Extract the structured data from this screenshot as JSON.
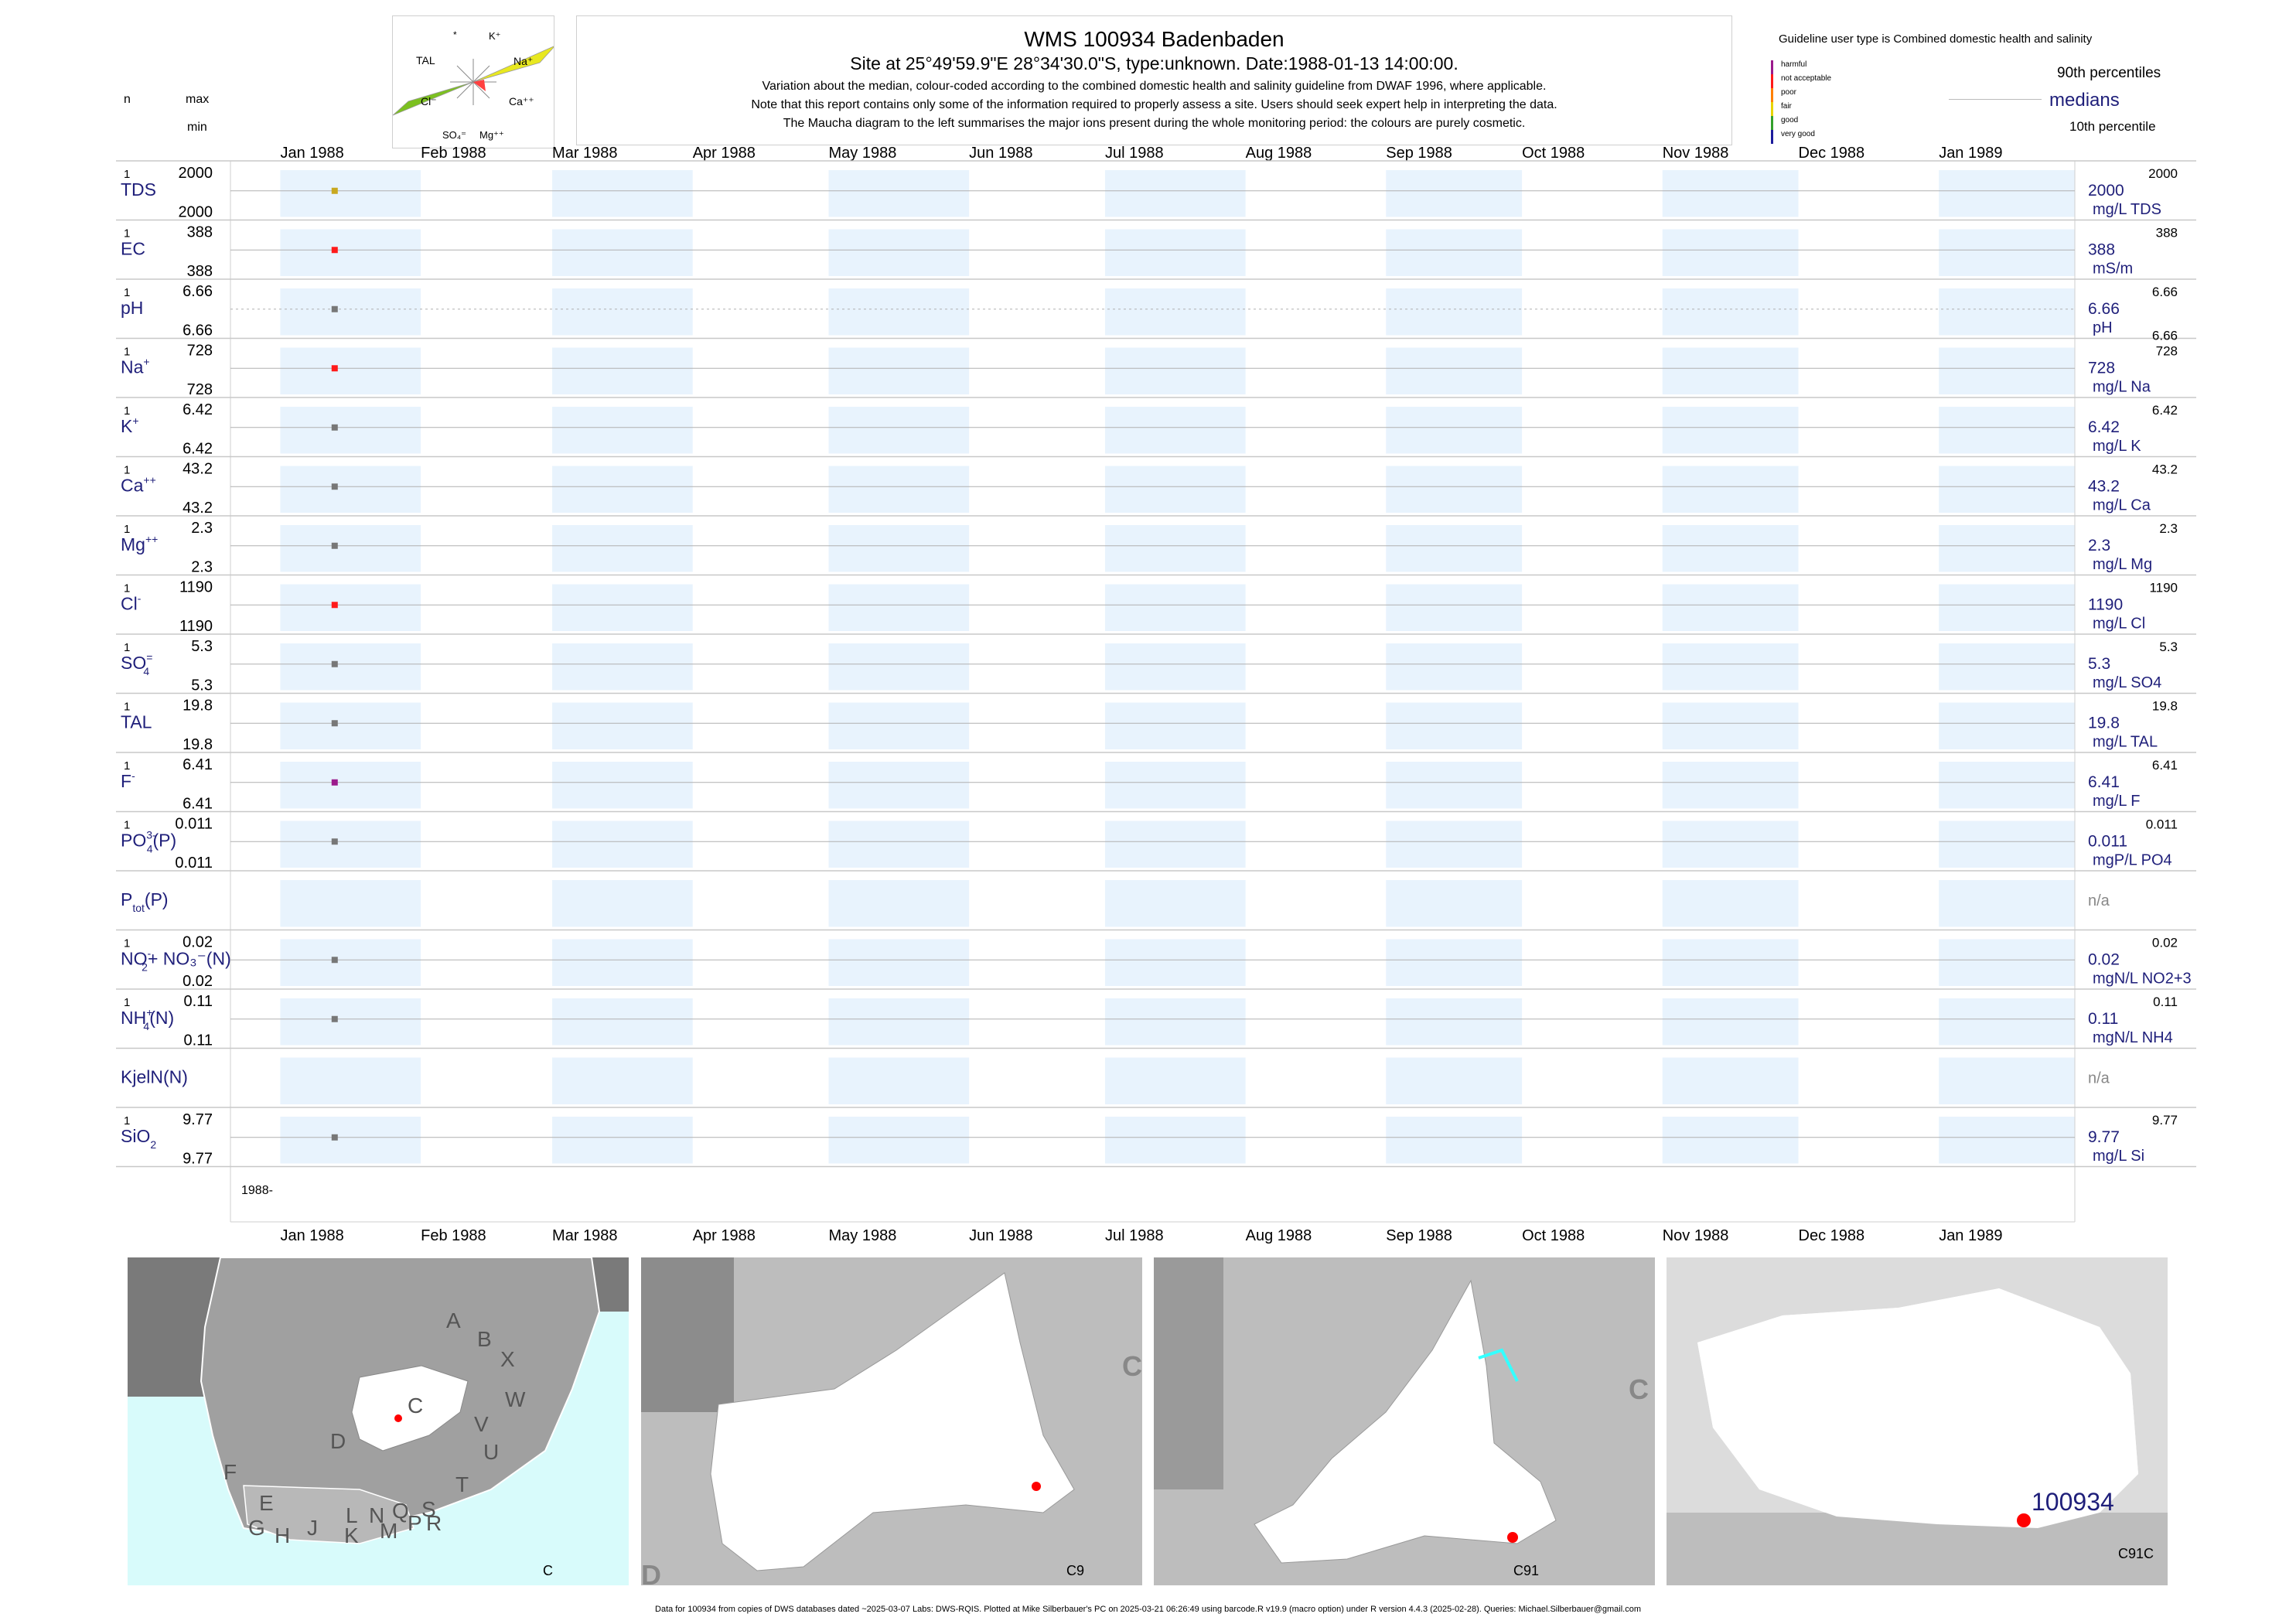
{
  "header": {
    "title": "WMS 100934  Badenbaden",
    "subtitle": "Site at 25°49'59.9\"E 28°34'30.0\"S, type:unknown. Date:1988-01-13 14:00:00.",
    "note1": "Variation about the median,  colour-coded according to the combined domestic health and salinity guideline from DWAF 1996, where applicable.",
    "note2": "Note that this report contains only some of the information required to properly assess a site. Users should seek expert help in interpreting the data.",
    "note3": "The Maucha diagram to the left summarises the major ions present during the whole monitoring period: the colours are purely cosmetic."
  },
  "maucha": {
    "labels": {
      "star": "*",
      "k": "K⁺",
      "tal": "TAL",
      "na": "Na⁺",
      "cl": "Cl⁻",
      "ca": "Ca⁺⁺",
      "so4": "SO₄⁼",
      "mg": "Mg⁺⁺"
    },
    "colors": {
      "na": "#e8e820",
      "cl": "#7cc020",
      "ca": "#ff4040",
      "lines": "#888888"
    }
  },
  "legend": {
    "guideline_title": "Guideline user type is Combined domestic health and salinity",
    "categories": [
      {
        "label": "harmful",
        "color": "#9b1a8c"
      },
      {
        "label": "not acceptable",
        "color": "#ff1a1a"
      },
      {
        "label": "poor",
        "color": "#ff8000"
      },
      {
        "label": "fair",
        "color": "#e8d400"
      },
      {
        "label": "good",
        "color": "#33a02c"
      },
      {
        "label": "very good",
        "color": "#1c1c9c"
      }
    ],
    "p90": "90th percentiles",
    "medians": "medians",
    "p10": "10th percentile"
  },
  "left_header": {
    "n": "n",
    "max": "max",
    "min": "min"
  },
  "chart_data": {
    "type": "scatter",
    "x_axis": {
      "months": [
        "Jan 1988",
        "Feb 1988",
        "Mar 1988",
        "Apr 1988",
        "May 1988",
        "Jun 1988",
        "Jul 1988",
        "Aug 1988",
        "Sep 1988",
        "Oct 1988",
        "Nov 1988",
        "Dec 1988",
        "Jan 1989"
      ],
      "year_label": "1988-",
      "range": [
        "1987-12-21",
        "1989-01-31"
      ]
    },
    "sample_date": "1988-01-13",
    "rows": [
      {
        "label": "TDS",
        "sup": "",
        "sub": "",
        "n": "1",
        "max": "2000",
        "min": "2000",
        "median": "2000",
        "p90": "2000",
        "unit": "mg/L TDS",
        "value": 2000,
        "color": "#c8a820"
      },
      {
        "label": "EC",
        "sup": "",
        "sub": "",
        "n": "1",
        "max": "388",
        "min": "388",
        "median": "388",
        "p90": "388",
        "unit": "mS/m",
        "value": 388,
        "color": "#ff1a1a"
      },
      {
        "label": "pH",
        "sup": "",
        "sub": "",
        "n": "1",
        "max": "6.66",
        "min": "6.66",
        "median": "6.66",
        "p90": "6.66",
        "p10": "6.66",
        "unit": "pH",
        "value": 6.66,
        "color": "#777777"
      },
      {
        "label": "Na",
        "sup": "+",
        "sub": "",
        "n": "1",
        "max": "728",
        "min": "728",
        "median": "728",
        "p90": "728",
        "unit": "mg/L Na",
        "value": 728,
        "color": "#ff1a1a"
      },
      {
        "label": "K",
        "sup": "+",
        "sub": "",
        "n": "1",
        "max": "6.42",
        "min": "6.42",
        "median": "6.42",
        "p90": "6.42",
        "unit": "mg/L K",
        "value": 6.42,
        "color": "#777777"
      },
      {
        "label": "Ca",
        "sup": "++",
        "sub": "",
        "n": "1",
        "max": "43.2",
        "min": "43.2",
        "median": "43.2",
        "p90": "43.2",
        "unit": "mg/L Ca",
        "value": 43.2,
        "color": "#777777"
      },
      {
        "label": "Mg",
        "sup": "++",
        "sub": "",
        "n": "1",
        "max": "2.3",
        "min": "2.3",
        "median": "2.3",
        "p90": "2.3",
        "unit": "mg/L Mg",
        "value": 2.3,
        "color": "#777777"
      },
      {
        "label": "Cl",
        "sup": "-",
        "sub": "",
        "n": "1",
        "max": "1190",
        "min": "1190",
        "median": "1190",
        "p90": "1190",
        "unit": "mg/L Cl",
        "value": 1190,
        "color": "#ff1a1a"
      },
      {
        "label": "SO",
        "sup": "=",
        "sub": "4",
        "n": "1",
        "max": "5.3",
        "min": "5.3",
        "median": "5.3",
        "p90": "5.3",
        "unit": "mg/L SO4",
        "value": 5.3,
        "color": "#777777"
      },
      {
        "label": "TAL",
        "sup": "",
        "sub": "",
        "n": "1",
        "max": "19.8",
        "min": "19.8",
        "median": "19.8",
        "p90": "19.8",
        "unit": "mg/L TAL",
        "value": 19.8,
        "color": "#777777"
      },
      {
        "label": "F",
        "sup": "-",
        "sub": "",
        "n": "1",
        "max": "6.41",
        "min": "6.41",
        "median": "6.41",
        "p90": "6.41",
        "unit": "mg/L F",
        "value": 6.41,
        "color": "#9b1a8c"
      },
      {
        "label": "PO",
        "sup": "3-",
        "sub": "4",
        "suffix": "(P)",
        "n": "1",
        "max": "0.011",
        "min": "0.011",
        "median": "0.011",
        "p90": "0.011",
        "unit": "mgP/L PO4",
        "value": 0.011,
        "color": "#777777"
      },
      {
        "label": "P",
        "sup": "",
        "sub": "tot",
        "suffix": "(P)",
        "n": "",
        "max": "",
        "min": "",
        "median": "n/a",
        "p90": "",
        "unit": "",
        "value": null,
        "color": "#777777"
      },
      {
        "label": "NO",
        "sup": "-",
        "sub": "2",
        "suffix": "+ NO₃⁻(N)",
        "n": "1",
        "max": "0.02",
        "min": "0.02",
        "median": "0.02",
        "p90": "0.02",
        "unit": "mgN/L NO2+3",
        "value": 0.02,
        "color": "#777777"
      },
      {
        "label": "NH",
        "sup": "+",
        "sub": "4",
        "suffix": "(N)",
        "n": "1",
        "max": "0.11",
        "min": "0.11",
        "median": "0.11",
        "p90": "0.11",
        "unit": "mgN/L NH4",
        "value": 0.11,
        "color": "#777777"
      },
      {
        "label": "KjelN(N)",
        "sup": "",
        "sub": "",
        "n": "",
        "max": "",
        "min": "",
        "median": "n/a",
        "p90": "",
        "unit": "",
        "value": null,
        "color": "#777777"
      },
      {
        "label": "SiO",
        "sup": "",
        "sub": "2",
        "n": "1",
        "max": "9.77",
        "min": "9.77",
        "median": "9.77",
        "p90": "9.77",
        "unit": "mg/L Si",
        "value": 9.77,
        "color": "#777777"
      }
    ]
  },
  "maps": {
    "map1": {
      "caption": "C",
      "regions": [
        "A",
        "B",
        "X",
        "W",
        "C",
        "D",
        "V",
        "U",
        "T",
        "F",
        "E",
        "G",
        "H",
        "J",
        "K",
        "L",
        "N",
        "M",
        "Q",
        "P",
        "S",
        "R"
      ]
    },
    "map2": {
      "caption": "C9",
      "edge_letter_right": "C",
      "edge_letter_bottom": "D"
    },
    "map3": {
      "caption": "C91",
      "edge_letter_right": "C"
    },
    "map4": {
      "caption": "C91C",
      "site_label": "100934"
    }
  },
  "footer": "Data for 100934 from copies of DWS databases dated ~2025-03-07 Labs: DWS-RQIS. Plotted at Mike Silberbauer's PC on 2025-03-21 06:26:49 using barcode.R v19.9 (macro option) under R version 4.4.3 (2025-02-28). Queries: Michael.Silberbauer@gmail.com"
}
